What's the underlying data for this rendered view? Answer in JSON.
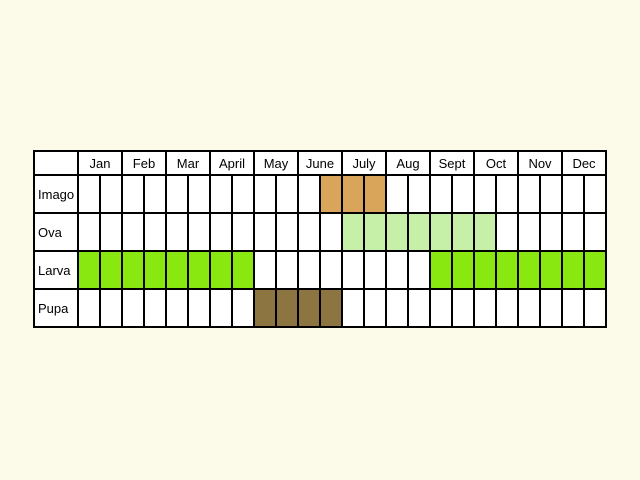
{
  "months": [
    "Jan",
    "Feb",
    "Mar",
    "Apr",
    "May",
    "June",
    "July",
    "Aug",
    "Sept",
    "Oct",
    "Nov",
    "Dec"
  ],
  "month_labels": [
    "Jan",
    "Feb",
    "Mar",
    "April",
    "May",
    "June",
    "July",
    "Aug",
    "Sept",
    "Oct",
    "Nov",
    "Dec"
  ],
  "periods_per_month": 2,
  "stages": [
    {
      "label": "Imago",
      "color": "#d9a55b",
      "active_ranges": [
        {
          "start_month": 5.5,
          "end_month": 7.0
        }
      ]
    },
    {
      "label": "Ova",
      "color": "#c6f0a8",
      "active_ranges": [
        {
          "start_month": 6.0,
          "end_month": 9.5
        }
      ]
    },
    {
      "label": "Larva",
      "color": "#88e810",
      "active_ranges": [
        {
          "start_month": 0.0,
          "end_month": 4.0
        },
        {
          "start_month": 8.0,
          "end_month": 12.0
        }
      ]
    },
    {
      "label": "Pupa",
      "color": "#8c7541",
      "active_ranges": [
        {
          "start_month": 4.0,
          "end_month": 6.0
        }
      ]
    }
  ],
  "colors": {
    "background": "#fcfbe9",
    "grid_line": "#000000",
    "cell_fill": "#ffffff",
    "text": "#000000"
  }
}
